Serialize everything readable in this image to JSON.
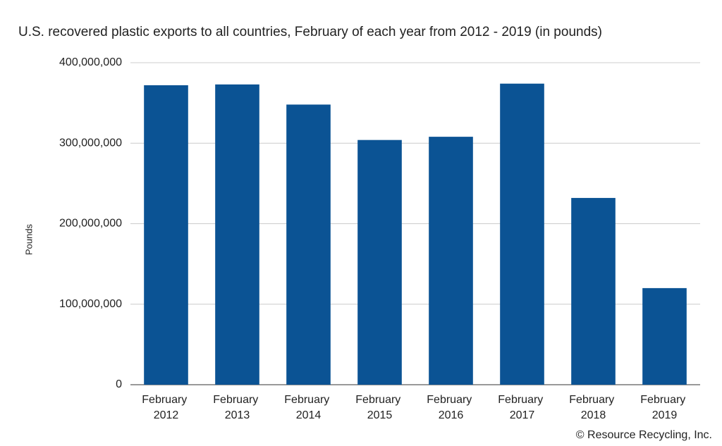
{
  "chart_data": {
    "type": "bar",
    "title": "U.S. recovered plastic exports to all countries, February of each year from 2012 - 2019 (in pounds)",
    "y_label": "Pounds",
    "source": "© Resource Recycling, Inc.",
    "categories": [
      "February 2012",
      "February 2013",
      "February 2014",
      "February 2015",
      "February 2016",
      "February 2017",
      "February 2018",
      "February 2019"
    ],
    "values": [
      372000000,
      373000000,
      348000000,
      304000000,
      308000000,
      374000000,
      232000000,
      120000000
    ],
    "color": "#0b5394",
    "ylim": [
      0,
      400000000
    ],
    "yticks": [
      0,
      {
        "value": 100000000,
        "label": "100,000,000"
      },
      {
        "value": 200000000,
        "label": "200,000,000"
      },
      {
        "value": 300000000,
        "label": "300,000,000"
      },
      {
        "value": 400000000,
        "label": "400,000,000"
      }
    ],
    "grid": true
  }
}
